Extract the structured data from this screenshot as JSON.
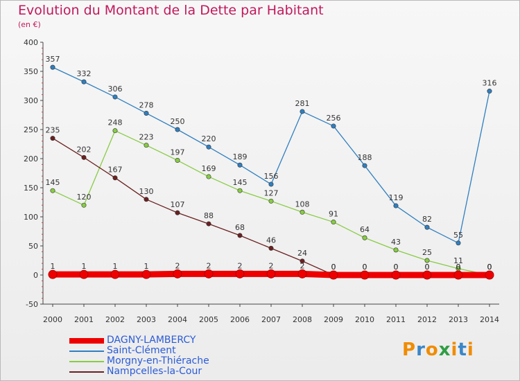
{
  "chart_data": {
    "type": "line",
    "title": "Evolution du Montant de la Dette par Habitant",
    "subtitle": "(en €)",
    "xlabel": "",
    "ylabel": "",
    "x": [
      2000,
      2001,
      2002,
      2003,
      2004,
      2005,
      2006,
      2007,
      2008,
      2009,
      2010,
      2011,
      2012,
      2013,
      2014
    ],
    "ylim": [
      -50,
      400
    ],
    "yticks": [
      -50,
      0,
      50,
      100,
      150,
      200,
      250,
      300,
      350,
      400
    ],
    "grid": false,
    "legend_position": "bottom-left",
    "series": [
      {
        "name": "DAGNY-LAMBERCY",
        "color": "#ee0000",
        "values": [
          1,
          1,
          1,
          1,
          2,
          2,
          2,
          2,
          2,
          0,
          0,
          0,
          0,
          0,
          0
        ]
      },
      {
        "name": "Saint-Clément",
        "color": "#2f7fc0",
        "values": [
          357,
          332,
          306,
          278,
          250,
          220,
          189,
          156,
          281,
          256,
          188,
          119,
          82,
          55,
          316
        ]
      },
      {
        "name": "Morgny-en-Thiérache",
        "color": "#88cc44",
        "values": [
          145,
          120,
          248,
          223,
          197,
          169,
          145,
          127,
          108,
          91,
          64,
          43,
          25,
          11,
          0
        ]
      },
      {
        "name": "Nampcelles-la-Cour",
        "color": "#6b2020",
        "values": [
          235,
          202,
          167,
          130,
          107,
          88,
          68,
          46,
          24,
          0,
          0,
          0,
          0,
          0,
          0
        ]
      }
    ]
  },
  "logo": {
    "text": "Proxiti",
    "colors": [
      "#f08c00",
      "#3a86c8",
      "#f08c00",
      "#2f9e44",
      "#f08c00",
      "#3a86c8",
      "#f08c00"
    ]
  }
}
